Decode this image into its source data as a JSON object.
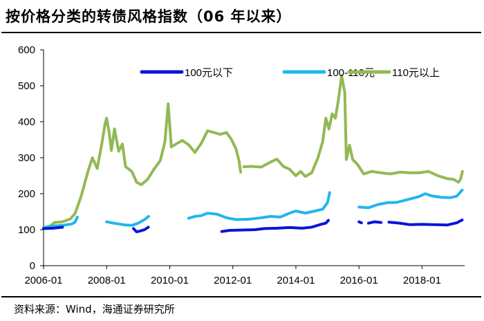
{
  "title": "按价格分类的转债风格指数（06 年以来）",
  "source": "资料来源：Wind，海通证券研究所",
  "chart_data": {
    "type": "line",
    "title": "按价格分类的转债风格指数（06 年以来）",
    "xlabel": "",
    "ylabel": "",
    "ylim": [
      0,
      600
    ],
    "yticks": [
      0,
      100,
      200,
      300,
      400,
      500,
      600
    ],
    "xlim": [
      2006.0,
      2019.35
    ],
    "xticks": [
      "2006-01",
      "2008-01",
      "2010-01",
      "2012-01",
      "2014-01",
      "2016-01",
      "2018-01"
    ],
    "grid": false,
    "legend_position": "top",
    "colors": [
      "#0a14d8",
      "#21b6ec",
      "#92b954"
    ],
    "series": [
      {
        "name": "100元以下",
        "segments": [
          [
            [
              2006.0,
              103
            ],
            [
              2006.3,
              104
            ],
            [
              2006.6,
              107
            ]
          ],
          [
            [
              2008.85,
              103
            ],
            [
              2008.95,
              94
            ],
            [
              2009.05,
              96
            ],
            [
              2009.2,
              100
            ],
            [
              2009.32,
              107
            ]
          ],
          [
            [
              2011.65,
              95
            ],
            [
              2011.9,
              98
            ],
            [
              2012.3,
              99
            ],
            [
              2012.7,
              100
            ],
            [
              2013.0,
              103
            ],
            [
              2013.4,
              104
            ],
            [
              2013.8,
              106
            ],
            [
              2014.2,
              104
            ],
            [
              2014.5,
              107
            ],
            [
              2014.8,
              115
            ],
            [
              2014.95,
              118
            ],
            [
              2015.03,
              126
            ]
          ],
          [
            [
              2016.0,
              122
            ],
            [
              2016.08,
              119
            ]
          ],
          [
            [
              2016.3,
              118
            ],
            [
              2016.5,
              122
            ],
            [
              2016.7,
              120
            ]
          ],
          [
            [
              2016.95,
              121
            ],
            [
              2017.3,
              118
            ],
            [
              2017.6,
              114
            ],
            [
              2018.0,
              115
            ],
            [
              2018.4,
              114
            ],
            [
              2018.8,
              113
            ],
            [
              2019.1,
              119
            ],
            [
              2019.27,
              127
            ]
          ]
        ]
      },
      {
        "name": "100-110元",
        "segments": [
          [
            [
              2006.0,
              105
            ],
            [
              2006.3,
              110
            ],
            [
              2006.6,
              112
            ],
            [
              2006.9,
              116
            ],
            [
              2007.0,
              121
            ],
            [
              2007.07,
              135
            ]
          ],
          [
            [
              2008.0,
              122
            ],
            [
              2008.3,
              117
            ],
            [
              2008.6,
              113
            ],
            [
              2008.8,
              112
            ],
            [
              2009.0,
              118
            ],
            [
              2009.2,
              128
            ],
            [
              2009.33,
              137
            ]
          ],
          [
            [
              2010.6,
              132
            ],
            [
              2010.8,
              137
            ],
            [
              2011.0,
              139
            ],
            [
              2011.2,
              146
            ],
            [
              2011.5,
              143
            ],
            [
              2011.8,
              133
            ],
            [
              2012.1,
              128
            ],
            [
              2012.5,
              129
            ],
            [
              2012.9,
              133
            ],
            [
              2013.2,
              137
            ],
            [
              2013.5,
              135
            ],
            [
              2013.8,
              146
            ],
            [
              2014.0,
              152
            ],
            [
              2014.3,
              146
            ],
            [
              2014.6,
              152
            ],
            [
              2014.85,
              157
            ],
            [
              2015.0,
              175
            ],
            [
              2015.07,
              203
            ]
          ],
          [
            [
              2016.0,
              163
            ],
            [
              2016.3,
              161
            ],
            [
              2016.6,
              170
            ],
            [
              2016.9,
              175
            ],
            [
              2017.2,
              176
            ],
            [
              2017.6,
              185
            ],
            [
              2017.9,
              192
            ],
            [
              2018.1,
              200
            ],
            [
              2018.3,
              194
            ],
            [
              2018.6,
              190
            ],
            [
              2018.9,
              189
            ],
            [
              2019.1,
              193
            ],
            [
              2019.27,
              210
            ]
          ]
        ]
      },
      {
        "name": "110元以上",
        "segments": [
          [
            [
              2006.0,
              106
            ],
            [
              2006.2,
              110
            ],
            [
              2006.35,
              120
            ],
            [
              2006.6,
              122
            ],
            [
              2006.85,
              130
            ],
            [
              2007.0,
              145
            ],
            [
              2007.2,
              195
            ],
            [
              2007.4,
              260
            ],
            [
              2007.55,
              300
            ],
            [
              2007.7,
              270
            ],
            [
              2007.85,
              340
            ],
            [
              2007.95,
              395
            ],
            [
              2008.0,
              410
            ],
            [
              2008.08,
              370
            ],
            [
              2008.15,
              320
            ],
            [
              2008.25,
              380
            ],
            [
              2008.38,
              318
            ],
            [
              2008.5,
              338
            ],
            [
              2008.6,
              275
            ],
            [
              2008.8,
              262
            ],
            [
              2008.95,
              232
            ],
            [
              2009.1,
              225
            ],
            [
              2009.3,
              240
            ],
            [
              2009.5,
              268
            ],
            [
              2009.7,
              292
            ],
            [
              2009.85,
              345
            ],
            [
              2009.95,
              450
            ],
            [
              2010.05,
              330
            ],
            [
              2010.2,
              338
            ],
            [
              2010.4,
              348
            ],
            [
              2010.6,
              336
            ],
            [
              2010.8,
              315
            ],
            [
              2011.0,
              340
            ],
            [
              2011.2,
              375
            ],
            [
              2011.4,
              370
            ],
            [
              2011.6,
              365
            ],
            [
              2011.8,
              370
            ],
            [
              2011.95,
              352
            ],
            [
              2012.1,
              325
            ],
            [
              2012.2,
              290
            ],
            [
              2012.25,
              260
            ]
          ],
          [
            [
              2012.35,
              275
            ],
            [
              2012.6,
              276
            ],
            [
              2012.9,
              274
            ],
            [
              2013.2,
              288
            ],
            [
              2013.4,
              296
            ],
            [
              2013.6,
              276
            ],
            [
              2013.8,
              268
            ],
            [
              2014.0,
              250
            ],
            [
              2014.15,
              262
            ],
            [
              2014.3,
              248
            ],
            [
              2014.5,
              258
            ],
            [
              2014.7,
              300
            ],
            [
              2014.85,
              345
            ],
            [
              2014.95,
              410
            ],
            [
              2015.05,
              380
            ],
            [
              2015.15,
              422
            ],
            [
              2015.25,
              410
            ],
            [
              2015.35,
              462
            ],
            [
              2015.45,
              528
            ],
            [
              2015.55,
              480
            ],
            [
              2015.6,
              295
            ],
            [
              2015.7,
              335
            ],
            [
              2015.8,
              295
            ],
            [
              2015.95,
              282
            ],
            [
              2016.15,
              255
            ],
            [
              2016.4,
              262
            ],
            [
              2016.7,
              258
            ],
            [
              2017.0,
              255
            ],
            [
              2017.3,
              260
            ],
            [
              2017.6,
              258
            ],
            [
              2017.9,
              258
            ],
            [
              2018.2,
              262
            ],
            [
              2018.5,
              250
            ],
            [
              2018.8,
              242
            ],
            [
              2019.0,
              240
            ],
            [
              2019.15,
              232
            ],
            [
              2019.22,
              240
            ],
            [
              2019.28,
              262
            ]
          ]
        ]
      }
    ]
  }
}
